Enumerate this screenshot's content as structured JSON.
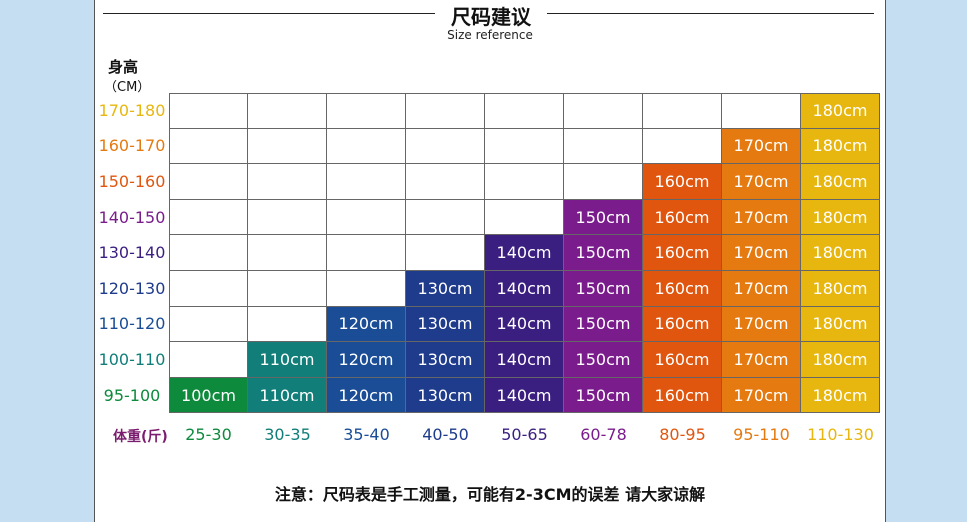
{
  "chart_data": {
    "type": "table",
    "title": "尺码建议",
    "subtitle": "Size reference",
    "ylabel_line1": "身高",
    "ylabel_line2": "（CM）",
    "xlabel": "体重(斤)",
    "height_ranges": [
      "170-180",
      "160-170",
      "150-160",
      "140-150",
      "130-140",
      "120-130",
      "110-120",
      "100-110",
      "95-100"
    ],
    "weight_ranges": [
      "25-30",
      "30-35",
      "35-40",
      "40-50",
      "50-65",
      "60-78",
      "80-95",
      "95-110",
      "110-130"
    ],
    "sizes": [
      "100cm",
      "110cm",
      "120cm",
      "130cm",
      "140cm",
      "150cm",
      "160cm",
      "170cm",
      "180cm"
    ],
    "first_filled_column": [
      8,
      7,
      6,
      5,
      4,
      3,
      2,
      1,
      0
    ],
    "colors": {
      "columns": [
        "#0d8a3c",
        "#117e79",
        "#1a4d96",
        "#1e3b8c",
        "#3b1f80",
        "#7a1c8c",
        "#e0560f",
        "#e57a10",
        "#e8b70f"
      ],
      "height_labels": [
        "#e8b70f",
        "#e57a10",
        "#e0560f",
        "#7a1c8c",
        "#3b1f80",
        "#1e3b8c",
        "#1a4d96",
        "#117e79",
        "#0d8a3c"
      ]
    },
    "note": "注意：尺码表是手工测量，可能有2-3CM的误差 请大家谅解"
  }
}
